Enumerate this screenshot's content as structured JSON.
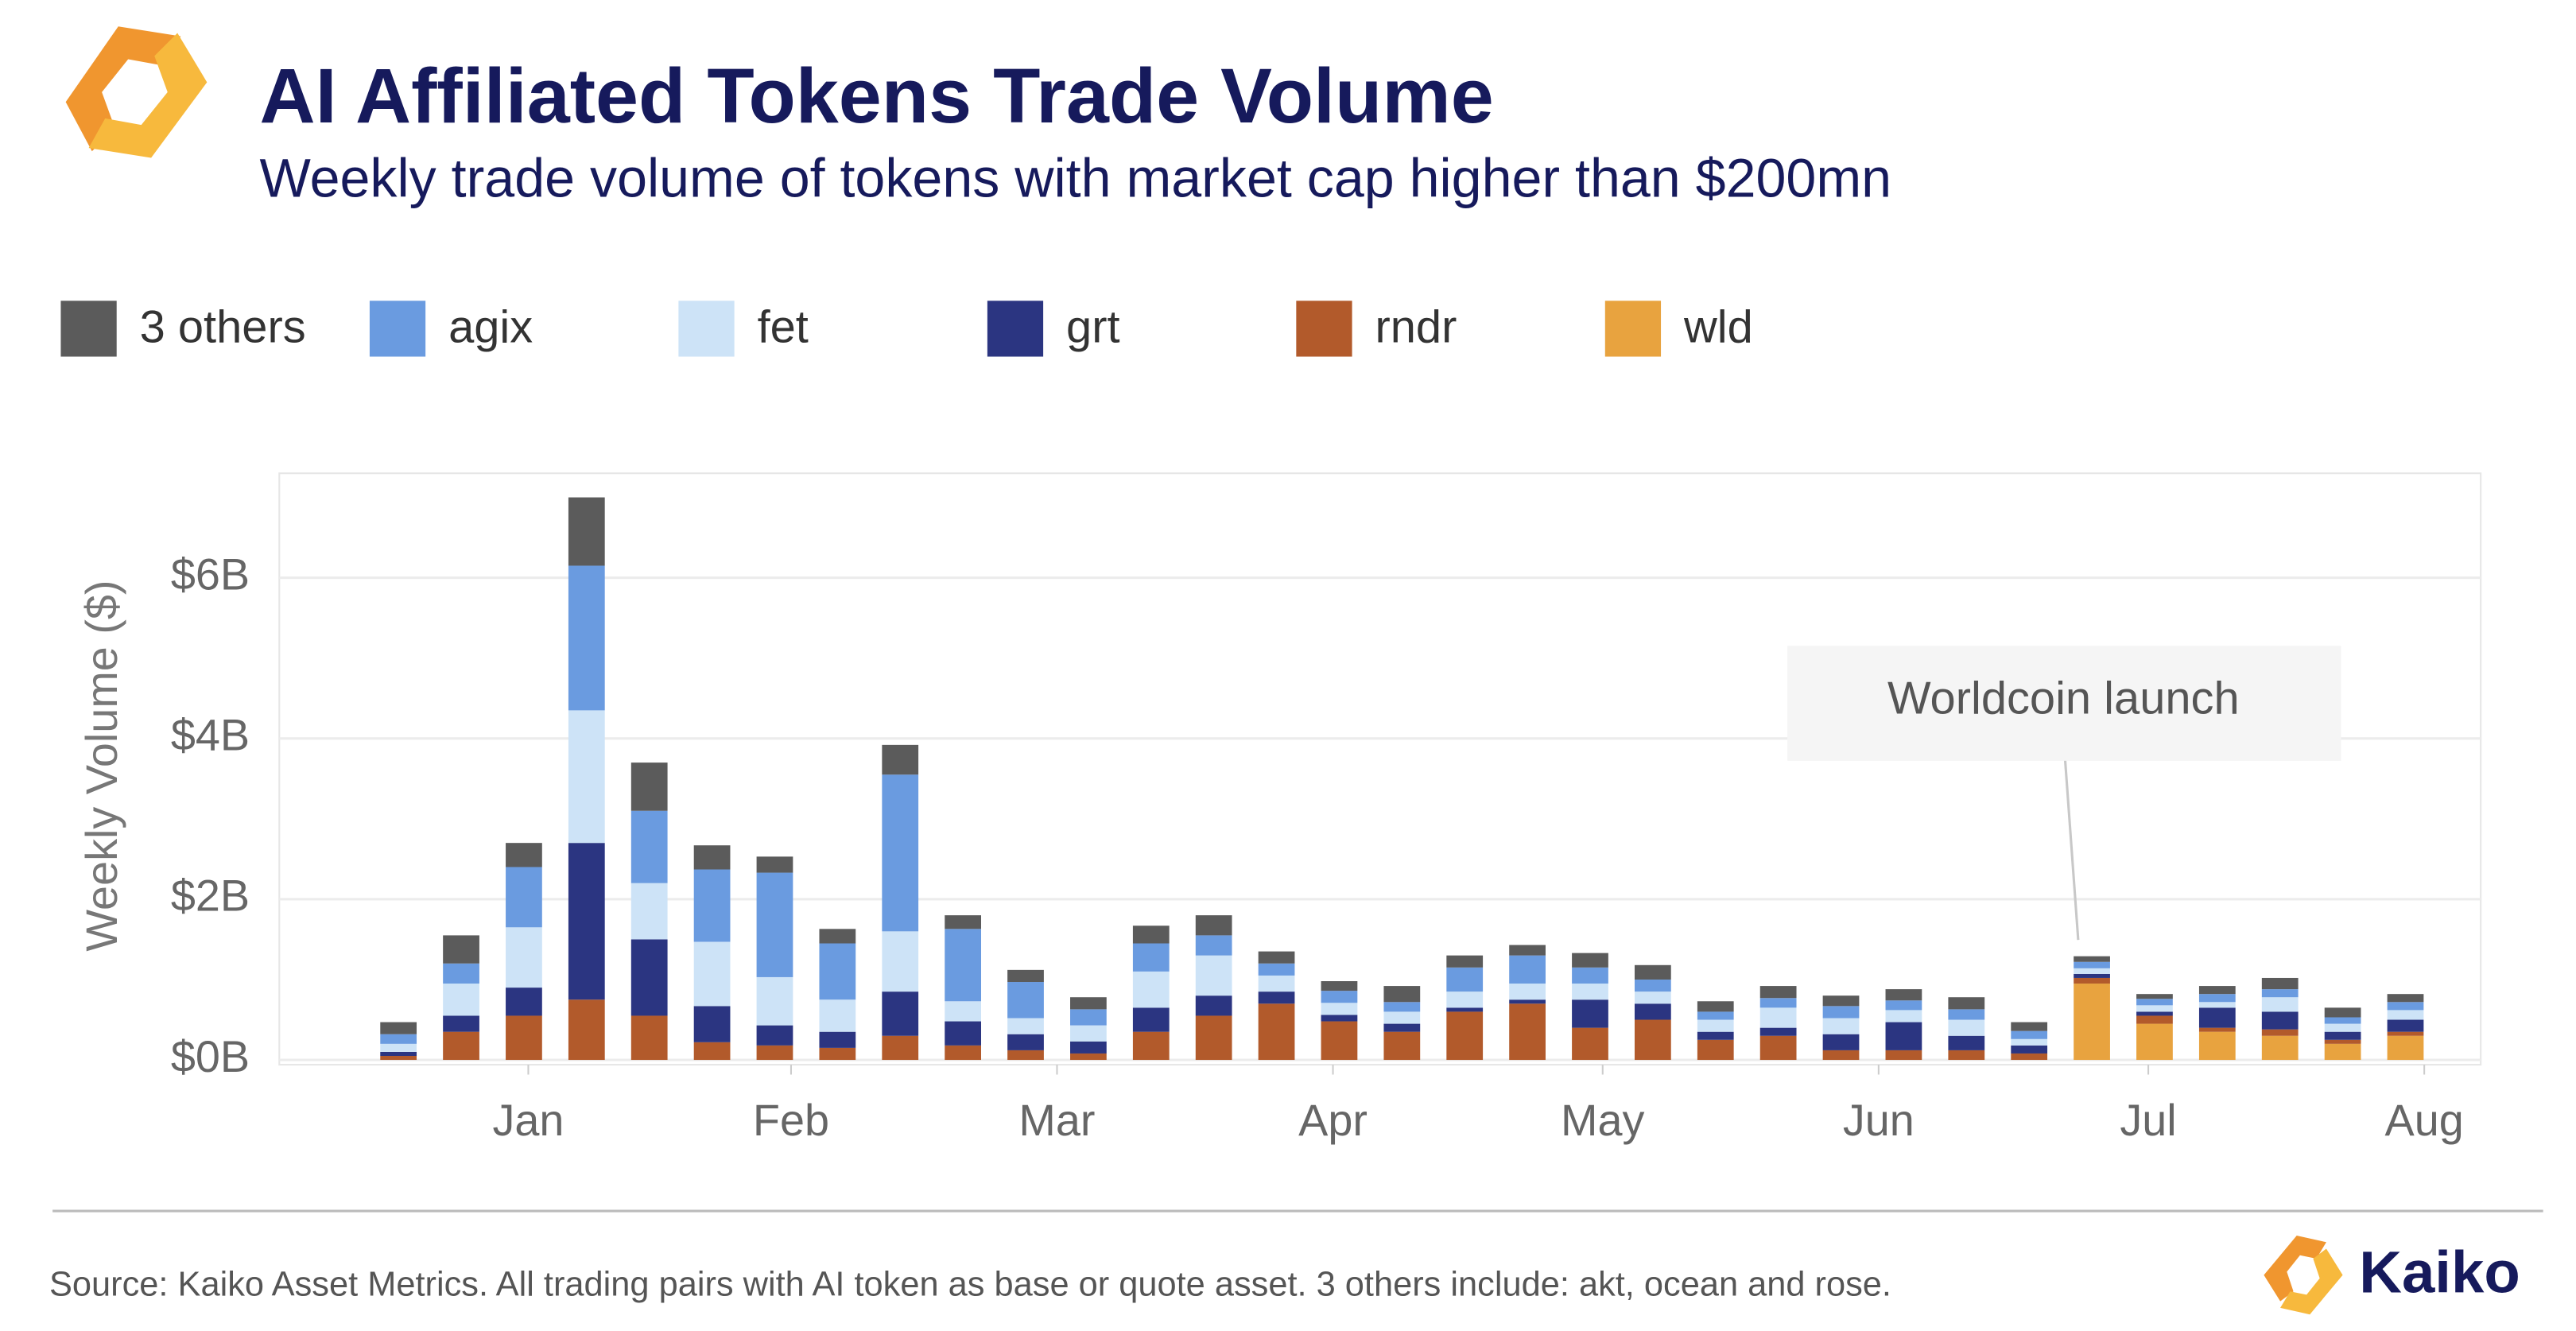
{
  "chart_data": {
    "type": "stacked-bar",
    "title": "AI Affiliated Tokens Trade Volume",
    "subtitle": "Weekly trade volume of tokens with market cap higher than $200mn",
    "y_label": "Weekly Volume ($)",
    "annotation": "Worldcoin launch",
    "source": "Source: Kaiko Asset Metrics. All trading pairs with AI token as base or quote asset. 3 others include: akt, ocean and rose.",
    "brand": "Kaiko",
    "legend": "top-left",
    "grid": true,
    "categories": [
      null,
      null,
      null,
      null,
      null,
      null,
      null,
      null,
      null,
      null,
      null,
      null,
      null,
      null,
      null,
      null,
      null,
      null,
      null,
      null,
      null,
      null,
      null,
      null,
      null,
      null,
      null,
      null,
      null,
      null,
      null,
      null,
      null
    ],
    "xlim": [
      -1.9,
      33.2
    ],
    "xticks": [
      {
        "value": 2.07,
        "label": "Jan"
      },
      {
        "value": 6.26,
        "label": "Feb"
      },
      {
        "value": 10.5,
        "label": "Mar"
      },
      {
        "value": 14.9,
        "label": "Apr"
      },
      {
        "value": 19.2,
        "label": "May"
      },
      {
        "value": 23.6,
        "label": "Jun"
      },
      {
        "value": 27.9,
        "label": "Jul"
      },
      {
        "value": 32.3,
        "label": "Aug"
      }
    ],
    "ylim": [
      -0.06,
      7.3
    ],
    "yticks": [
      {
        "value": 0,
        "label": "$0B"
      },
      {
        "value": 2,
        "label": "$2B"
      },
      {
        "value": 4,
        "label": "$4B"
      },
      {
        "value": 6,
        "label": "$6B"
      }
    ],
    "series": [
      {
        "name": "3 others",
        "color": "#5b5b5b",
        "values": [
          0.15,
          0.35,
          0.3,
          0.85,
          0.6,
          0.3,
          0.2,
          0.18,
          0.37,
          0.17,
          0.15,
          0.15,
          0.22,
          0.25,
          0.15,
          0.12,
          0.2,
          0.15,
          0.13,
          0.18,
          0.18,
          0.13,
          0.15,
          0.13,
          0.14,
          0.15,
          0.11,
          0.07,
          0.06,
          0.1,
          0.14,
          0.12,
          0.1
        ]
      },
      {
        "name": "agix",
        "color": "#6a9be0",
        "values": [
          0.12,
          0.25,
          0.75,
          1.8,
          0.9,
          0.9,
          1.3,
          0.7,
          1.95,
          0.9,
          0.45,
          0.2,
          0.35,
          0.25,
          0.15,
          0.15,
          0.12,
          0.3,
          0.35,
          0.2,
          0.15,
          0.1,
          0.12,
          0.15,
          0.12,
          0.13,
          0.1,
          0.08,
          0.08,
          0.1,
          0.1,
          0.08,
          0.1
        ]
      },
      {
        "name": "fet",
        "color": "#cde3f7",
        "values": [
          0.1,
          0.4,
          0.75,
          1.65,
          0.7,
          0.8,
          0.6,
          0.4,
          0.75,
          0.25,
          0.2,
          0.2,
          0.45,
          0.5,
          0.2,
          0.15,
          0.15,
          0.2,
          0.2,
          0.2,
          0.15,
          0.15,
          0.25,
          0.2,
          0.15,
          0.2,
          0.08,
          0.07,
          0.08,
          0.07,
          0.18,
          0.1,
          0.12
        ]
      },
      {
        "name": "grt",
        "color": "#2b3581",
        "values": [
          0.05,
          0.2,
          0.35,
          1.95,
          0.95,
          0.45,
          0.25,
          0.2,
          0.55,
          0.3,
          0.2,
          0.15,
          0.3,
          0.25,
          0.15,
          0.08,
          0.1,
          0.05,
          0.05,
          0.35,
          0.2,
          0.1,
          0.1,
          0.2,
          0.35,
          0.18,
          0.1,
          0.05,
          0.05,
          0.25,
          0.22,
          0.1,
          0.15
        ]
      },
      {
        "name": "rndr",
        "color": "#b25a2b",
        "values": [
          0.05,
          0.35,
          0.55,
          0.75,
          0.55,
          0.22,
          0.18,
          0.15,
          0.3,
          0.18,
          0.12,
          0.08,
          0.35,
          0.55,
          0.7,
          0.48,
          0.35,
          0.6,
          0.7,
          0.4,
          0.5,
          0.25,
          0.3,
          0.12,
          0.12,
          0.12,
          0.08,
          0.07,
          0.1,
          0.05,
          0.08,
          0.05,
          0.05
        ]
      },
      {
        "name": "wld",
        "color": "#e8a33f",
        "values": [
          0,
          0,
          0,
          0,
          0,
          0,
          0,
          0,
          0,
          0,
          0,
          0,
          0,
          0,
          0,
          0,
          0,
          0,
          0,
          0,
          0,
          0,
          0,
          0,
          0,
          0,
          0,
          0.95,
          0.45,
          0.35,
          0.3,
          0.2,
          0.3
        ]
      }
    ]
  }
}
